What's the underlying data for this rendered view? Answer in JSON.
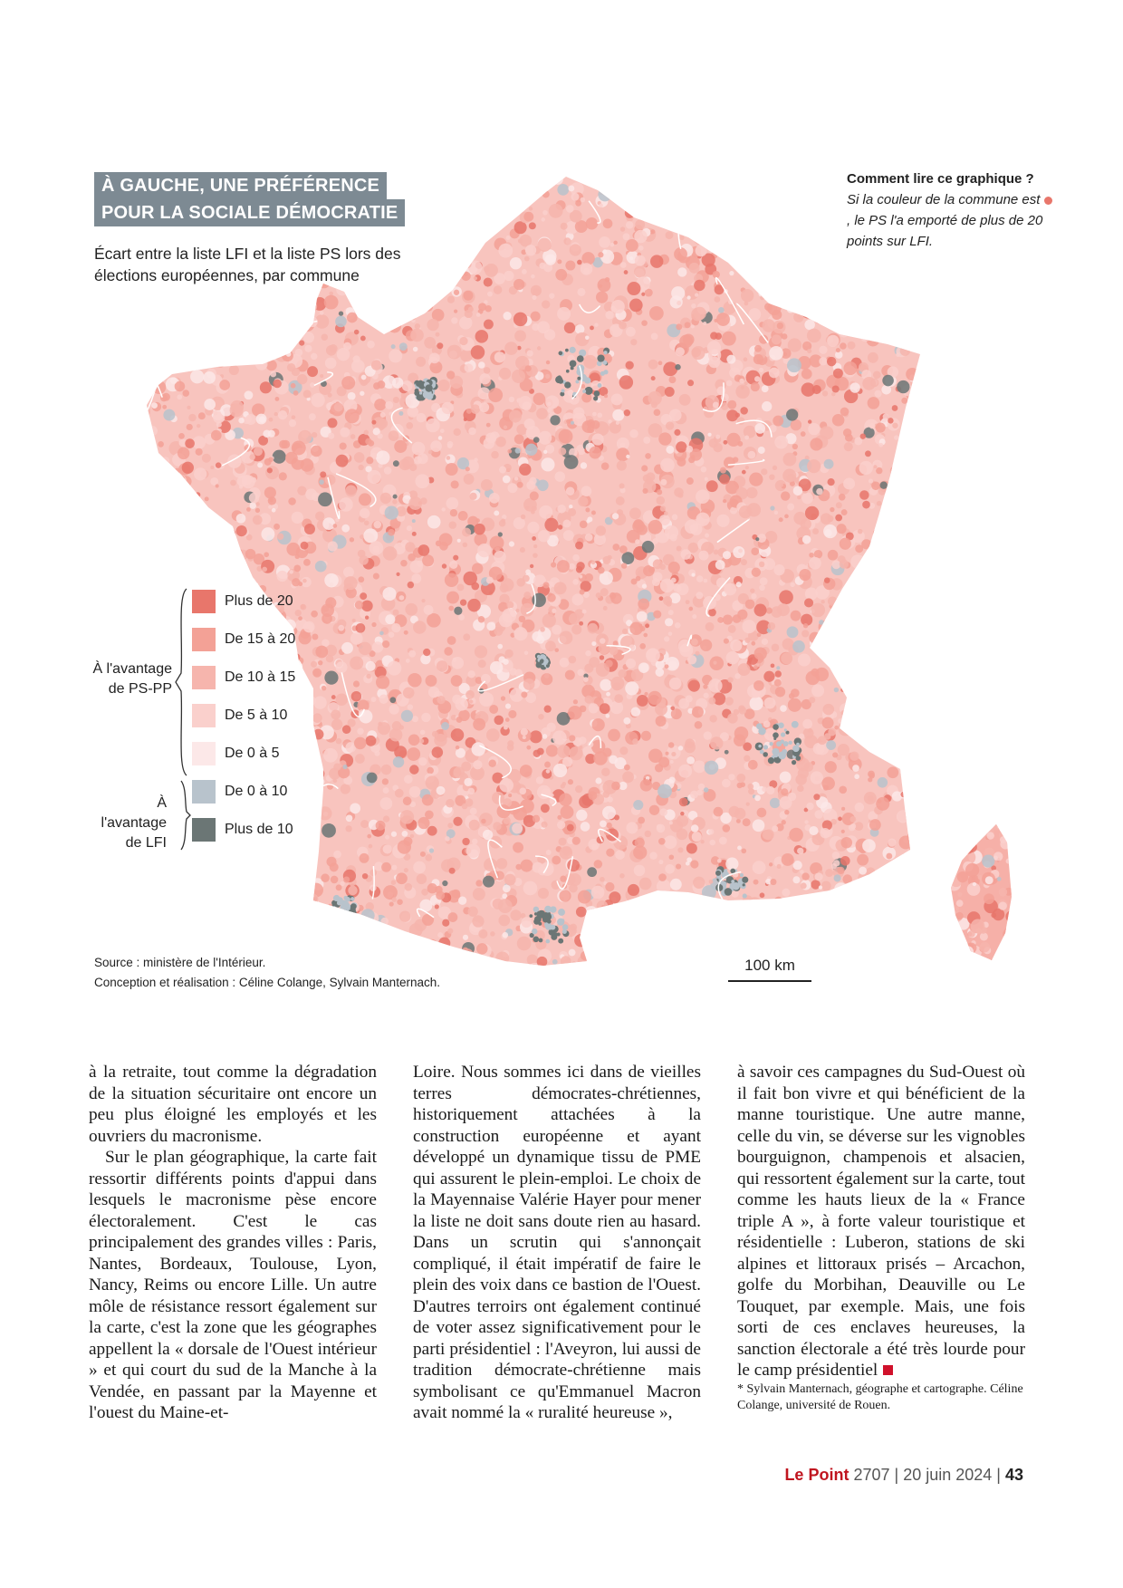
{
  "figure": {
    "title_line1": "À GAUCHE, UNE PRÉFÉRENCE",
    "title_line2": "POUR LA SOCIALE DÉMOCRATIE",
    "subtitle": "Écart entre la liste LFI et la liste PS lors des élections européennes, par commune",
    "howto_heading": "Comment lire ce graphique ?",
    "howto_text_before": "Si la couleur de la commune est ",
    "howto_text_after": ", le PS l'a emporté de plus de 20 points sur LFI.",
    "legend": {
      "group_ps": "À l'avantage de PS-PP",
      "group_lfi": "À l'avantage de LFI",
      "items": [
        {
          "label": "Plus de 20",
          "color": "#e8766b"
        },
        {
          "label": "De 15 à 20",
          "color": "#f3a196"
        },
        {
          "label": "De 10 à 15",
          "color": "#f6b5ad"
        },
        {
          "label": "De 5 à 10",
          "color": "#fad0cc"
        },
        {
          "label": "De 0 à 5",
          "color": "#fce8e8"
        },
        {
          "label": "De 0 à 10",
          "color": "#b8c3cc"
        },
        {
          "label": "Plus de 10",
          "color": "#6b7675"
        }
      ]
    },
    "scale_label": "100 km",
    "source": "Source : ministère de l'Intérieur.",
    "credits": "Conception et réalisation : Céline Colange, Sylvain Manternach."
  },
  "article": {
    "col1_p1": "à la retraite, tout comme la dégradation de la situation sécuritaire ont encore un peu plus éloigné les employés et les ouvriers du macronisme.",
    "col1_p2": "Sur le plan géographique, la carte fait ressortir différents points d'appui dans lesquels le macronisme pèse encore électoralement. C'est le cas principalement des grandes villes : Paris, Nantes, Bordeaux, Toulouse, Lyon, Nancy, Reims ou encore Lille. Un autre môle de résistance ressort également sur la carte, c'est la zone que les géographes appellent la « dorsale de l'Ouest intérieur » et qui court du sud de la Manche à la Vendée, en passant par la Mayenne et l'ouest du Maine-et-",
    "col2": "Loire. Nous sommes ici dans de vieilles terres démocrates-chrétiennes, historiquement attachées à la construction européenne et ayant développé un dynamique tissu de PME qui assurent le plein-emploi. Le choix de la Mayennaise Valérie Hayer pour mener la liste ne doit sans doute rien au hasard. Dans un scrutin qui s'annonçait compliqué, il était impératif de faire le plein des voix dans ce bastion de l'Ouest. D'autres terroirs ont également continué de voter assez significativement pour le parti présidentiel : l'Aveyron, lui aussi de tradition démocrate-chrétienne mais symbolisant ce qu'Emmanuel Macron avait nommé la « ruralité heureuse »,",
    "col3": "à savoir ces campagnes du Sud-Ouest où il fait bon vivre et qui bénéficient de la manne touristique. Une autre manne, celle du vin, se déverse sur les vignobles bourguignon, champenois et alsacien, qui ressortent également sur la carte, tout comme les hauts lieux de la « France triple A », à forte valeur touristique et résidentielle : Luberon, stations de ski alpines et littoraux prisés – Arcachon, golfe du Morbihan, Deauville ou Le Touquet, par exemple. Mais, une fois sorti de ces enclaves heureuses, la sanction électorale a été très lourde pour le camp présidentiel",
    "footnote": "* Sylvain Manternach, géographe et cartographe. Céline Colange, université de Rouen."
  },
  "footer": {
    "brand": "Le Point",
    "issue": "2707",
    "date": "20 juin 2024",
    "page": "43"
  },
  "colors": {
    "brand": "#c0151f",
    "title_box": "#7d8a93"
  }
}
